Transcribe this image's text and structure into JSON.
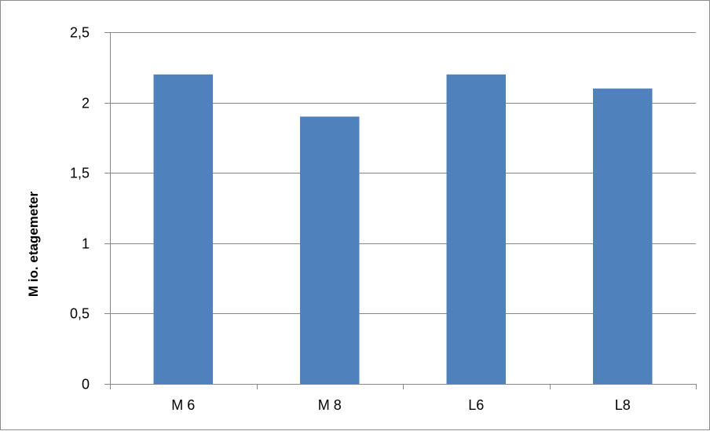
{
  "chart_data": {
    "type": "bar",
    "title": "",
    "xlabel": "",
    "ylabel": "M io. etagemeter",
    "categories": [
      "M 6",
      "M 8",
      "L6",
      "L8"
    ],
    "values": [
      2.2,
      1.9,
      2.2,
      2.1
    ],
    "ylim": [
      0,
      2.5
    ],
    "yticks": [
      0,
      0.5,
      1,
      1.5,
      2,
      2.5
    ],
    "ytick_labels": [
      "0",
      "0,5",
      "1",
      "1,5",
      "2",
      "2,5"
    ],
    "grid": true,
    "legend": "none",
    "bar_color": "#4f81bd",
    "grid_color": "#868686"
  }
}
